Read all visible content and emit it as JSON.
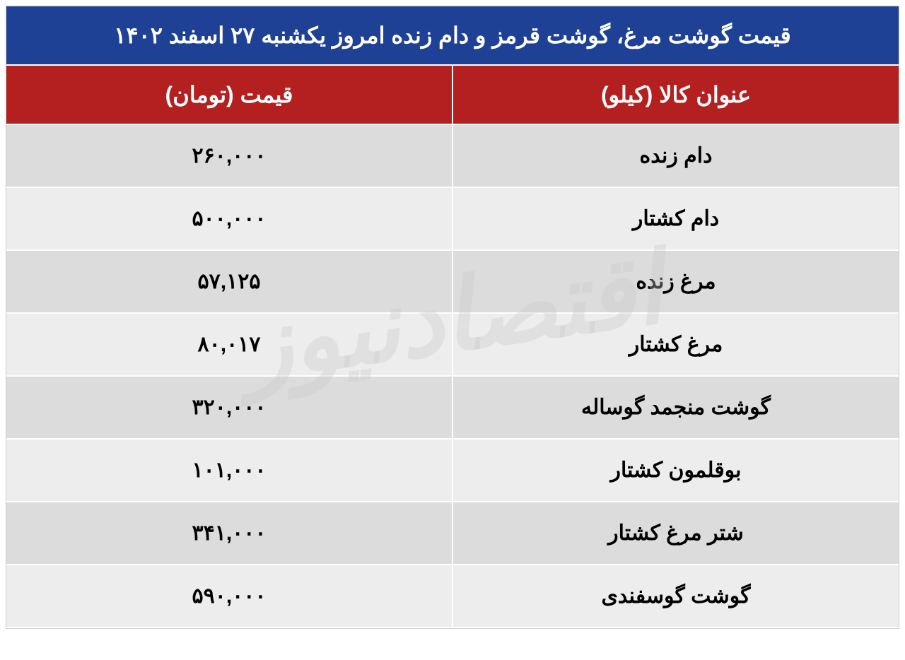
{
  "title": "قیمت گوشت مرغ، گوشت قرمز و دام زنده امروز یکشنبه ۲۷ اسفند ۱۴۰۲",
  "headers": {
    "item": "عنوان کالا (کیلو)",
    "price": "قیمت (تومان)"
  },
  "rows": [
    {
      "item": "دام زنده",
      "price": "۲۶۰,۰۰۰"
    },
    {
      "item": "دام کشتار",
      "price": "۵۰۰,۰۰۰"
    },
    {
      "item": "مرغ زنده",
      "price": "۵۷,۱۲۵"
    },
    {
      "item": "مرغ کشتار",
      "price": "۸۰,۰۱۷"
    },
    {
      "item": "گوشت منجمد گوساله",
      "price": "۳۲۰,۰۰۰"
    },
    {
      "item": "بوقلمون کشتار",
      "price": "۱۰۱,۰۰۰"
    },
    {
      "item": "شتر مرغ کشتار",
      "price": "۳۴۱,۰۰۰"
    },
    {
      "item": "گوشت گوسفندی",
      "price": "۵۹۰,۰۰۰"
    }
  ],
  "watermark": "اقتصادنیوز",
  "styles": {
    "title_bg": "#1e4196",
    "title_color": "#ffffff",
    "header_bg": "#b4201f",
    "header_color": "#ffffff",
    "row_odd_bg": "#dcdcdc",
    "row_even_bg": "#ededed",
    "cell_text_color": "#000000",
    "border_color": "#ffffff",
    "title_fontsize": 32,
    "header_fontsize": 32,
    "cell_fontsize": 30,
    "watermark_color": "rgba(200,200,200,0.35)"
  }
}
